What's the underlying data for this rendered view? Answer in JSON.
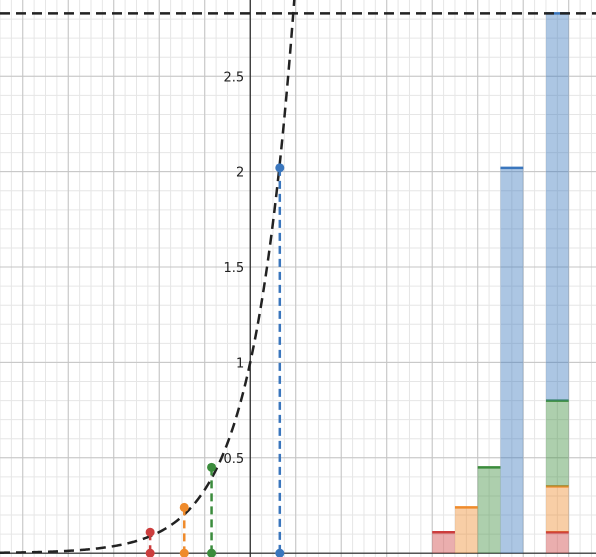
{
  "chart_data": {
    "type": "line",
    "title": "",
    "xlabel": "",
    "ylabel": "",
    "xlim": [
      -5.5,
      7.6
    ],
    "ylim": [
      -0.02,
      2.9
    ],
    "grid": true,
    "x_ticks": [
      -4,
      -2,
      0,
      2,
      4,
      6
    ],
    "y_ticks": [
      0.5,
      1,
      1.5,
      2,
      2.5
    ],
    "curve": {
      "function": "exp(1.1*x)",
      "style": "dashed",
      "color": "#222222"
    },
    "asymptote_y": 2.83,
    "markers": [
      {
        "x": -2.2,
        "y": 0.11,
        "color": "#cc3d3d"
      },
      {
        "x": -1.45,
        "y": 0.24,
        "color": "#ef8b2c"
      },
      {
        "x": -0.85,
        "y": 0.45,
        "color": "#3b8c3c"
      },
      {
        "x": 0.65,
        "y": 2.02,
        "color": "#3a76bd"
      }
    ],
    "bars": [
      {
        "x0": 4.0,
        "x1": 4.5,
        "segments": [
          {
            "color": "#cc3d3d",
            "bottom": 0,
            "top": 0.11
          }
        ]
      },
      {
        "x0": 4.5,
        "x1": 5.0,
        "segments": [
          {
            "color": "#ef8b2c",
            "bottom": 0,
            "top": 0.24
          }
        ]
      },
      {
        "x0": 5.0,
        "x1": 5.5,
        "segments": [
          {
            "color": "#3b8c3c",
            "bottom": 0,
            "top": 0.45
          }
        ]
      },
      {
        "x0": 5.5,
        "x1": 6.0,
        "segments": [
          {
            "color": "#3a76bd",
            "bottom": 0,
            "top": 2.02
          }
        ]
      },
      {
        "x0": 6.5,
        "x1": 7.0,
        "segments": [
          {
            "color": "#cc3d3d",
            "bottom": 0,
            "top": 0.11
          },
          {
            "color": "#ef8b2c",
            "bottom": 0.11,
            "top": 0.35
          },
          {
            "color": "#3b8c3c",
            "bottom": 0.35,
            "top": 0.8
          },
          {
            "color": "#3a76bd",
            "bottom": 0.8,
            "top": 2.83
          }
        ]
      }
    ]
  }
}
